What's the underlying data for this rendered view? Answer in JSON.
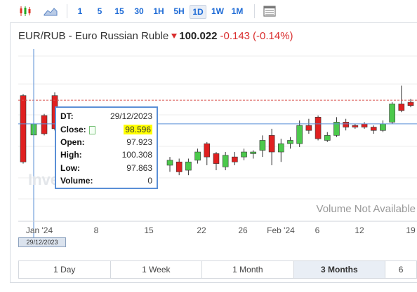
{
  "toolbar": {
    "chart_type_icon": "candlestick-icon",
    "area_icon": "area-chart-icon",
    "intervals": [
      "1",
      "5",
      "15",
      "30",
      "1H",
      "5H",
      "1D",
      "1W",
      "1M"
    ],
    "active_interval": "1D",
    "table_icon": "table-icon"
  },
  "instrument": {
    "name": "EUR/RUB - Euro Russian Ruble",
    "last": "100.022",
    "change": "-0.143",
    "change_pct": "(-0.14%)"
  },
  "tooltip": {
    "dt_label": "DT:",
    "dt_value": "29/12/2023",
    "close_label": "Close:",
    "close_value": "98.596",
    "open_label": "Open:",
    "open_value": "97.923",
    "high_label": "High:",
    "high_value": "100.308",
    "low_label": "Low:",
    "low_value": "97.863",
    "volume_label": "Volume:",
    "volume_value": "0"
  },
  "crosshair_date": "29/12/2023",
  "watermark": "Inve",
  "volume_message": "Volume Not Available",
  "colors": {
    "up": "#4cc94c",
    "down": "#e02020",
    "accent": "#1e6bd6",
    "crosshair": "#5a8fd6"
  },
  "ranges": [
    "1 Day",
    "1 Week",
    "1 Month",
    "3 Months",
    "6"
  ],
  "active_range": "3 Months",
  "chart_data": {
    "type": "candlestick",
    "x_tick_labels": [
      "Jan '24",
      "8",
      "15",
      "22",
      "26",
      "Feb '24",
      "6",
      "12",
      "19"
    ],
    "current_price_line": 100.022,
    "candles": [
      {
        "date": "Dec 28",
        "open": 100.3,
        "close": 96.3,
        "high": 100.4,
        "low": 96.2
      },
      {
        "date": "Dec 29",
        "open": 97.923,
        "close": 98.596,
        "high": 100.308,
        "low": 97.863
      },
      {
        "date": "Jan 02",
        "open": 99.1,
        "close": 98.0,
        "high": 99.2,
        "low": 97.9
      },
      {
        "date": "Jan 04",
        "open": 100.3,
        "close": 98.3,
        "high": 100.5,
        "low": 98.2
      },
      {
        "date": "Jan 05",
        "open": 99.2,
        "close": 98.2,
        "high": 99.5,
        "low": 98.0
      },
      {
        "date": "Jan 10",
        "open": 96.1,
        "close": 96.4,
        "high": 96.6,
        "low": 95.7
      },
      {
        "date": "Jan 11",
        "open": 96.3,
        "close": 95.7,
        "high": 96.5,
        "low": 95.5
      },
      {
        "date": "Jan 12",
        "open": 95.8,
        "close": 96.3,
        "high": 96.5,
        "low": 95.5
      },
      {
        "date": "Jan 15",
        "open": 96.4,
        "close": 96.9,
        "high": 97.1,
        "low": 96.2
      },
      {
        "date": "Jan 16",
        "open": 97.4,
        "close": 96.6,
        "high": 97.5,
        "low": 96.1
      },
      {
        "date": "Jan 17",
        "open": 96.8,
        "close": 96.2,
        "high": 96.9,
        "low": 95.8
      },
      {
        "date": "Jan 18",
        "open": 96.0,
        "close": 96.7,
        "high": 96.9,
        "low": 95.8
      },
      {
        "date": "Jan 19",
        "open": 96.6,
        "close": 96.3,
        "high": 96.9,
        "low": 96.1
      },
      {
        "date": "Jan 22",
        "open": 96.6,
        "close": 96.9,
        "high": 97.1,
        "low": 96.4
      },
      {
        "date": "Jan 23",
        "open": 96.8,
        "close": 96.9,
        "high": 97.0,
        "low": 96.5
      },
      {
        "date": "Jan 24",
        "open": 97.0,
        "close": 97.6,
        "high": 97.9,
        "low": 96.6
      },
      {
        "date": "Jan 25",
        "open": 97.9,
        "close": 96.9,
        "high": 98.3,
        "low": 96.1
      },
      {
        "date": "Jan 26",
        "open": 96.9,
        "close": 97.4,
        "high": 97.7,
        "low": 96.3
      },
      {
        "date": "Jan 29",
        "open": 97.4,
        "close": 97.6,
        "high": 97.8,
        "low": 97.1
      },
      {
        "date": "Jan 31",
        "open": 97.4,
        "close": 98.5,
        "high": 98.8,
        "low": 97.2
      },
      {
        "date": "Feb 01",
        "open": 98.5,
        "close": 98.2,
        "high": 98.9,
        "low": 98.0
      },
      {
        "date": "Feb 02",
        "open": 99.0,
        "close": 97.7,
        "high": 99.1,
        "low": 97.6
      },
      {
        "date": "Feb 05",
        "open": 97.6,
        "close": 97.9,
        "high": 98.1,
        "low": 97.5
      },
      {
        "date": "Feb 06",
        "open": 97.9,
        "close": 98.7,
        "high": 99.0,
        "low": 97.8
      },
      {
        "date": "Feb 07",
        "open": 98.7,
        "close": 98.4,
        "high": 98.9,
        "low": 98.2
      },
      {
        "date": "Feb 08",
        "open": 98.5,
        "close": 98.4,
        "high": 98.6,
        "low": 98.3
      },
      {
        "date": "Feb 09",
        "open": 98.6,
        "close": 98.4,
        "high": 98.7,
        "low": 98.3
      },
      {
        "date": "Feb 12",
        "open": 98.4,
        "close": 98.2,
        "high": 98.5,
        "low": 98.0
      },
      {
        "date": "Feb 13",
        "open": 98.2,
        "close": 98.6,
        "high": 98.8,
        "low": 98.1
      },
      {
        "date": "Feb 14",
        "open": 98.7,
        "close": 99.8,
        "high": 99.9,
        "low": 98.6
      },
      {
        "date": "Feb 15",
        "open": 99.8,
        "close": 99.4,
        "high": 100.9,
        "low": 99.3
      },
      {
        "date": "Feb 16",
        "open": 99.9,
        "close": 99.7,
        "high": 100.1,
        "low": 99.6
      }
    ]
  }
}
